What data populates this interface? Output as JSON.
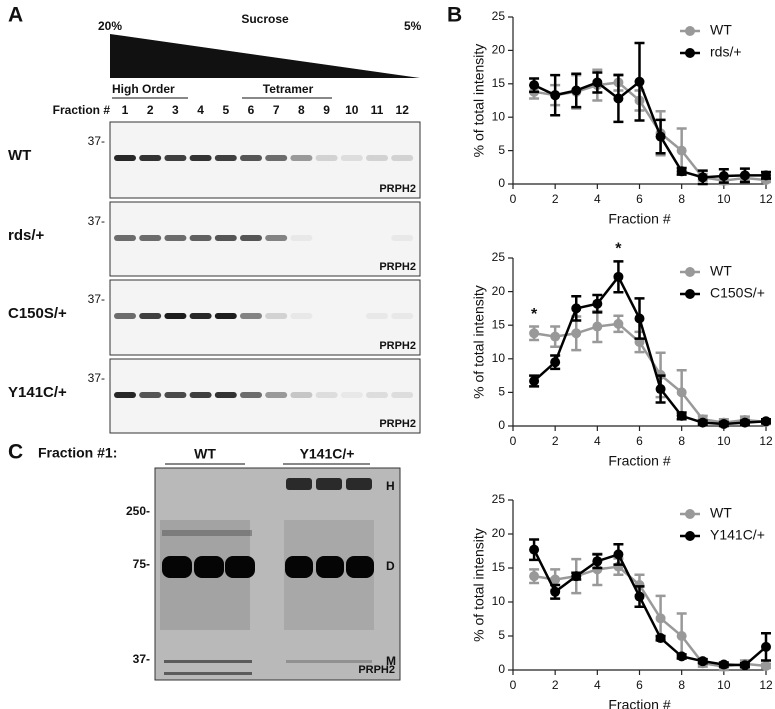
{
  "panel_labels": [
    "A",
    "B",
    "C"
  ],
  "blot_a": {
    "gradient_left": "20%",
    "gradient_title": "Sucrose",
    "gradient_right": "5%",
    "groups": [
      "High Order",
      "Tetramer"
    ],
    "fraction_label": "Fraction #",
    "fractions": [
      "1",
      "2",
      "3",
      "4",
      "5",
      "6",
      "7",
      "8",
      "9",
      "10",
      "11",
      "12"
    ],
    "rows": [
      {
        "name": "WT",
        "marker": "37-",
        "protein": "PRPH2"
      },
      {
        "name": "rds/+",
        "marker": "37-",
        "protein": "PRPH2"
      },
      {
        "name": "C150S/+",
        "marker": "37-",
        "protein": "PRPH2"
      },
      {
        "name": "Y141C/+",
        "marker": "37-",
        "protein": "PRPH2"
      }
    ]
  },
  "blot_c": {
    "title": "Fraction #1:",
    "groups": [
      "WT",
      "Y141C/+"
    ],
    "markers": [
      "250-",
      "75-",
      "37-"
    ],
    "bands": [
      "H",
      "D",
      "M"
    ],
    "protein": "PRPH2"
  },
  "chart_data": [
    {
      "type": "line",
      "xlabel": "Fraction #",
      "ylabel": "% of total intensity",
      "x": [
        1,
        2,
        3,
        4,
        5,
        6,
        7,
        8,
        9,
        10,
        11,
        12
      ],
      "xlim": [
        0,
        12
      ],
      "xticks": [
        0,
        2,
        4,
        6,
        8,
        10,
        12
      ],
      "ylim": [
        0,
        25
      ],
      "yticks": [
        0,
        5,
        10,
        15,
        20,
        25
      ],
      "legend": "upper right",
      "series": [
        {
          "name": "WT",
          "color": "#999999",
          "values": [
            13.8,
            13.3,
            13.8,
            14.8,
            15.2,
            12.5,
            7.6,
            5.0,
            1.0,
            0.5,
            0.9,
            0.6
          ],
          "errors": [
            1.0,
            1.5,
            2.5,
            2.3,
            1.2,
            1.5,
            3.3,
            3.3,
            0.5,
            0.5,
            0.5,
            0.3
          ]
        },
        {
          "name": "rds/+",
          "color": "#000000",
          "values": [
            14.8,
            13.3,
            14.0,
            15.2,
            12.8,
            15.3,
            7.1,
            1.9,
            1.0,
            1.2,
            1.3,
            1.3
          ],
          "errors": [
            1.0,
            3.0,
            2.5,
            1.5,
            3.5,
            5.8,
            2.5,
            0.5,
            1.0,
            1.0,
            1.0,
            0.5
          ]
        }
      ]
    },
    {
      "type": "line",
      "xlabel": "Fraction #",
      "ylabel": "% of total intensity",
      "x": [
        1,
        2,
        3,
        4,
        5,
        6,
        7,
        8,
        9,
        10,
        11,
        12
      ],
      "xlim": [
        0,
        12
      ],
      "xticks": [
        0,
        2,
        4,
        6,
        8,
        10,
        12
      ],
      "ylim": [
        0,
        25
      ],
      "yticks": [
        0,
        5,
        10,
        15,
        20,
        25
      ],
      "legend": "upper right",
      "annotations": [
        {
          "text": "*",
          "x": 1
        },
        {
          "text": "*",
          "x": 5
        }
      ],
      "series": [
        {
          "name": "WT",
          "color": "#999999",
          "values": [
            13.8,
            13.3,
            13.8,
            14.8,
            15.2,
            12.5,
            7.6,
            5.0,
            1.0,
            0.5,
            0.9,
            0.6
          ],
          "errors": [
            1.0,
            1.5,
            2.5,
            2.3,
            1.2,
            1.5,
            3.3,
            3.3,
            0.5,
            0.5,
            0.5,
            0.3
          ]
        },
        {
          "name": "C150S/+",
          "color": "#000000",
          "values": [
            6.7,
            9.5,
            17.5,
            18.2,
            22.2,
            16.0,
            5.5,
            1.5,
            0.5,
            0.3,
            0.5,
            0.7
          ],
          "errors": [
            0.8,
            1.0,
            1.8,
            1.3,
            2.3,
            3.0,
            2.0,
            0.5,
            0.3,
            0.3,
            0.3,
            0.3
          ]
        }
      ]
    },
    {
      "type": "line",
      "xlabel": "Fraction #",
      "ylabel": "% of total intensity",
      "x": [
        1,
        2,
        3,
        4,
        5,
        6,
        7,
        8,
        9,
        10,
        11,
        12
      ],
      "xlim": [
        0,
        12
      ],
      "xticks": [
        0,
        2,
        4,
        6,
        8,
        10,
        12
      ],
      "ylim": [
        0,
        25
      ],
      "yticks": [
        0,
        5,
        10,
        15,
        20,
        25
      ],
      "legend": "upper right",
      "series": [
        {
          "name": "WT",
          "color": "#999999",
          "values": [
            13.8,
            13.3,
            13.8,
            14.8,
            15.2,
            12.5,
            7.6,
            5.0,
            1.0,
            0.5,
            0.9,
            0.6
          ],
          "errors": [
            1.0,
            1.5,
            2.5,
            2.3,
            1.2,
            1.5,
            3.3,
            3.3,
            0.5,
            0.5,
            0.5,
            0.3
          ]
        },
        {
          "name": "Y141C/+",
          "color": "#000000",
          "values": [
            17.7,
            11.5,
            13.8,
            16.0,
            17.0,
            10.8,
            4.7,
            2.0,
            1.3,
            0.8,
            0.7,
            3.4
          ],
          "errors": [
            1.5,
            1.0,
            0.5,
            1.0,
            1.5,
            1.5,
            0.3,
            0.3,
            0.3,
            0.3,
            0.3,
            2.0
          ]
        }
      ]
    }
  ]
}
